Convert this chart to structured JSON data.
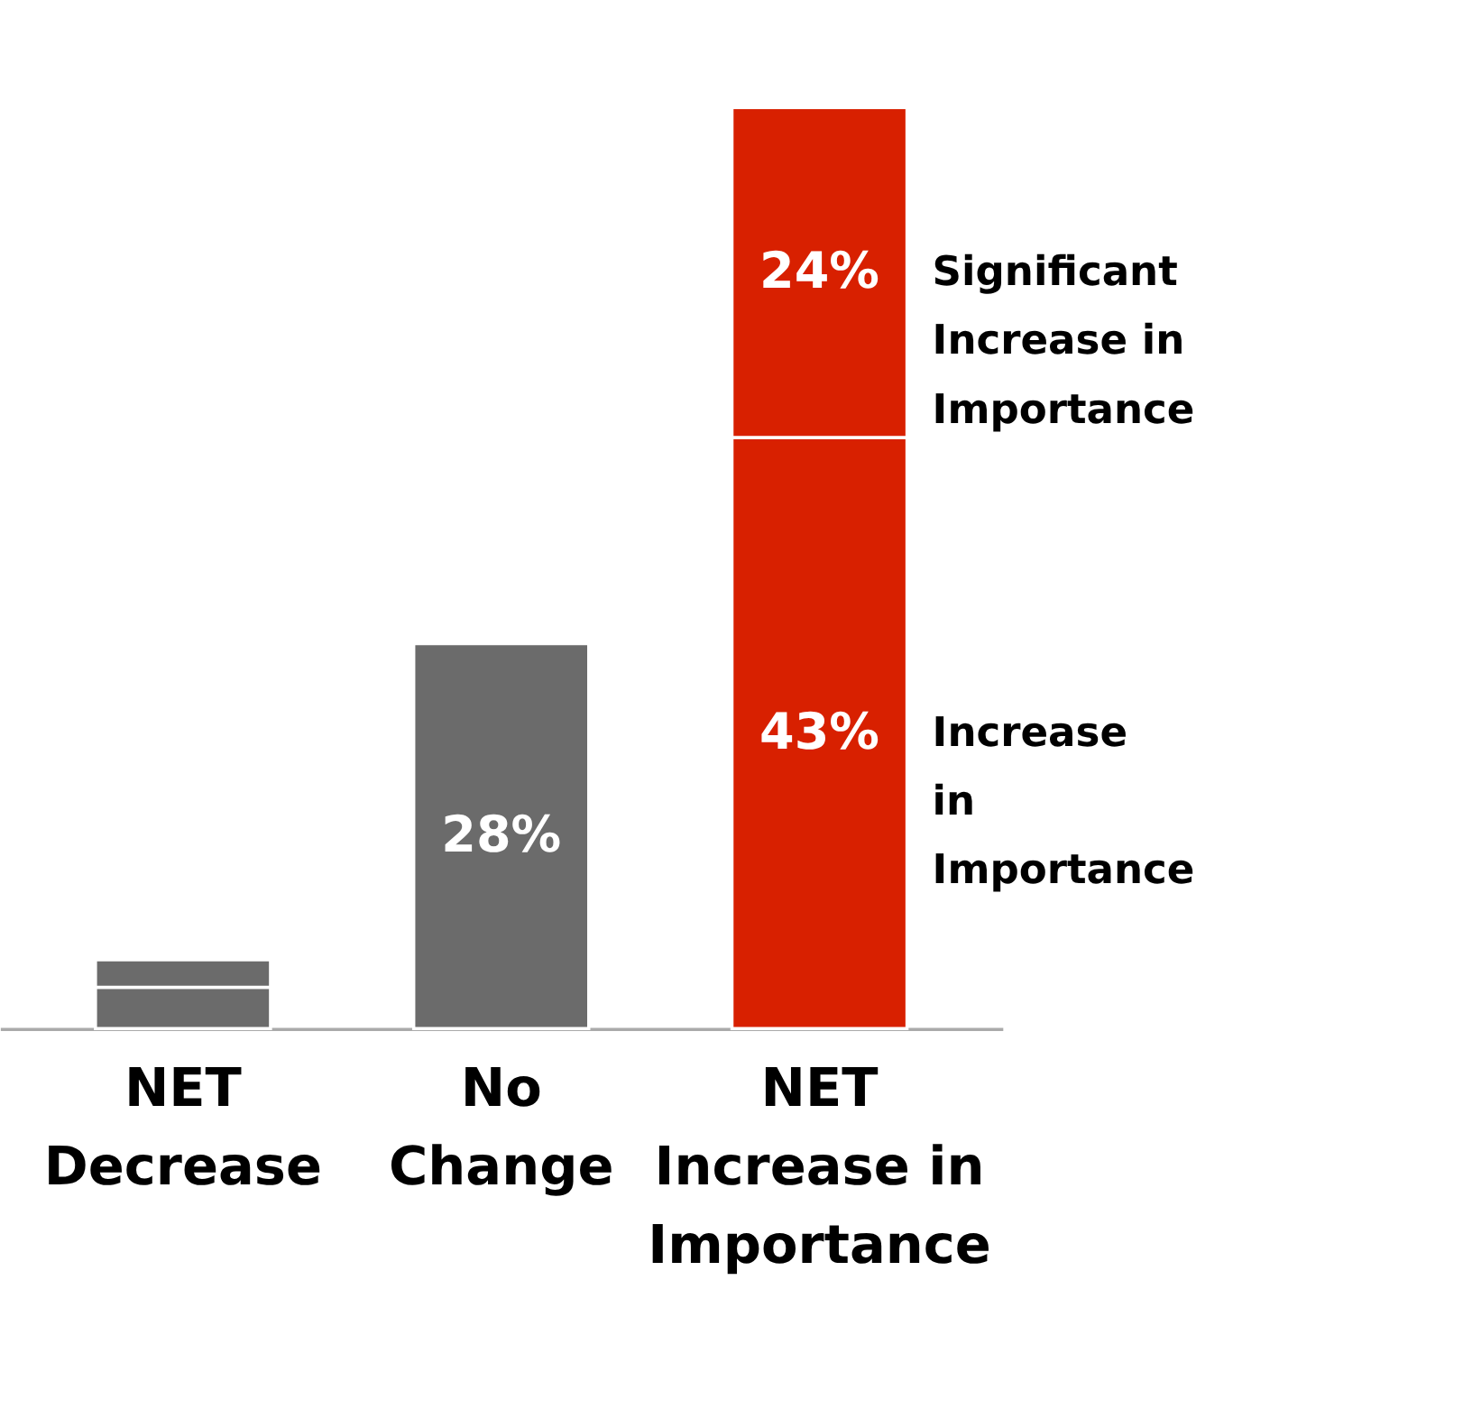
{
  "chart_data": {
    "type": "bar",
    "stacked": true,
    "categories": [
      "NET Decrease",
      "No Change",
      "NET Increase in Importance"
    ],
    "series": [
      {
        "name": "Increase in Importance",
        "colors": [
          "#6b6b6b",
          "#6b6b6b",
          "#d82000"
        ],
        "values": [
          3,
          28,
          43
        ],
        "value_labels": [
          null,
          "28%",
          "43%"
        ]
      },
      {
        "name": "Significant Increase in Importance",
        "colors": [
          "#6b6b6b",
          "#6b6b6b",
          "#d82000"
        ],
        "values": [
          2,
          null,
          24
        ],
        "value_labels": [
          null,
          null,
          "24%"
        ]
      }
    ],
    "legend": false,
    "grid": false,
    "tick_labels": "x"
  }
}
